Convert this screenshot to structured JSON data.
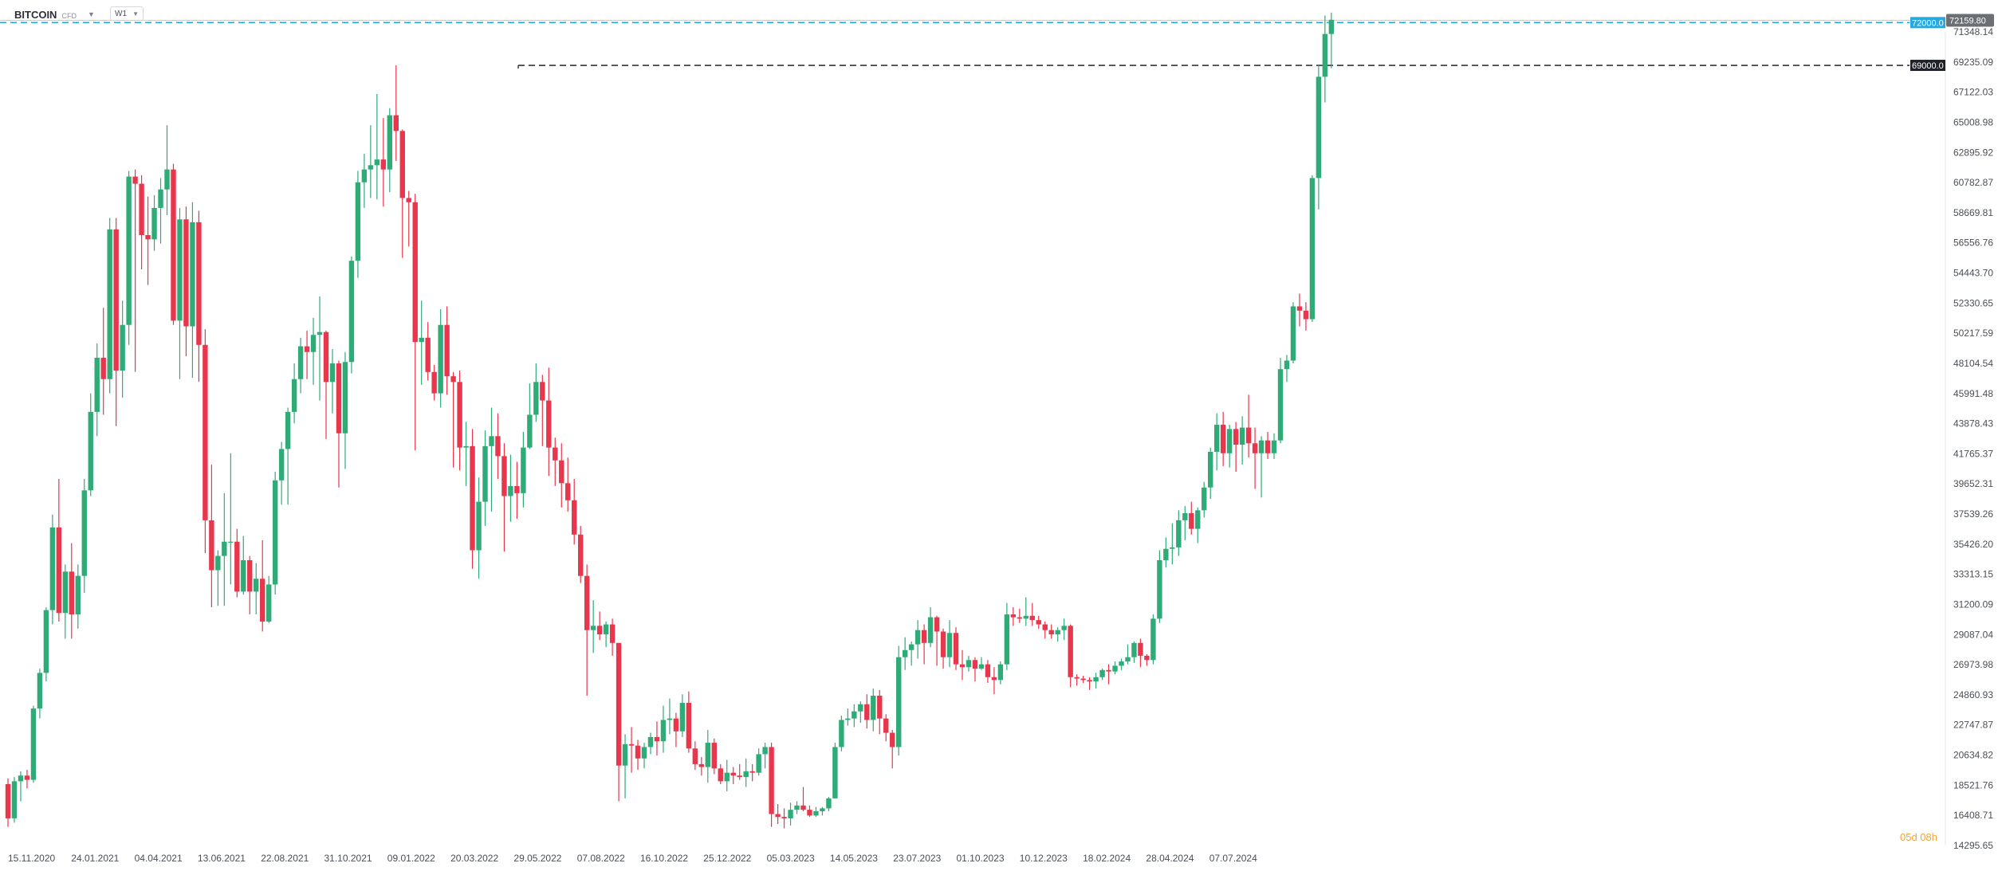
{
  "toolbar": {
    "symbol": "BITCOIN",
    "symbol_type": "CFD",
    "timeframe": "W1",
    "caret_icon": "caret-down-icon"
  },
  "colors": {
    "up": "#2fab78",
    "down": "#e8364c",
    "level_blue": "#29a7e1",
    "level_dark": "#333333",
    "price_badge": "#6b6f75"
  },
  "chart_data": {
    "type": "candlestick",
    "title": "",
    "xlabel": "",
    "ylabel": "",
    "ylim": [
      14295.65,
      73280.0
    ],
    "y_ticks": [
      "71348.14",
      "69235.09",
      "67122.03",
      "65008.98",
      "62895.92",
      "60782.87",
      "58669.81",
      "56556.76",
      "54443.70",
      "52330.65",
      "50217.59",
      "48104.54",
      "45991.48",
      "43878.43",
      "41765.37",
      "39652.31",
      "37539.26",
      "35426.20",
      "33313.15",
      "31200.09",
      "29087.04",
      "26973.98",
      "24860.93",
      "22747.87",
      "20634.82",
      "18521.76",
      "16408.71",
      "14295.65"
    ],
    "x_ticks": [
      "15.11.2020",
      "24.01.2021",
      "04.04.2021",
      "13.06.2021",
      "22.08.2021",
      "31.10.2021",
      "09.01.2022",
      "20.03.2022",
      "29.05.2022",
      "07.08.2022",
      "16.10.2022",
      "25.12.2022",
      "05.03.2023",
      "14.05.2023",
      "23.07.2023",
      "01.10.2023",
      "10.12.2023",
      "18.02.2024",
      "28.04.2024",
      "07.07.2024"
    ],
    "levels": [
      {
        "value": 72000.0,
        "label": "72000.0",
        "style": "blue-dashed"
      },
      {
        "value": 69000.0,
        "label": "69000.0",
        "style": "dark-dashed"
      }
    ],
    "last_price": 72159.8,
    "last_price_label": "72159.80",
    "countdown": "05d 08h",
    "candles": [
      [
        18600,
        16200,
        19000,
        15600
      ],
      [
        16200,
        18800,
        19100,
        15900
      ],
      [
        18800,
        19200,
        19500,
        17400
      ],
      [
        19200,
        18900,
        19600,
        18300
      ],
      [
        18900,
        23900,
        24100,
        18700
      ],
      [
        23900,
        26400,
        26700,
        23200
      ],
      [
        26400,
        30800,
        31000,
        25800
      ],
      [
        30800,
        36600,
        37500,
        29800
      ],
      [
        36600,
        30600,
        40000,
        30000
      ],
      [
        30600,
        33500,
        34000,
        28800
      ],
      [
        33500,
        30500,
        35500,
        28800
      ],
      [
        30500,
        33200,
        34000,
        29500
      ],
      [
        33200,
        39200,
        40000,
        32000
      ],
      [
        39200,
        44700,
        46000,
        38800
      ],
      [
        44700,
        48500,
        49500,
        43000
      ],
      [
        48500,
        47000,
        52000,
        44500
      ],
      [
        47000,
        57500,
        58300,
        46000
      ],
      [
        57500,
        47600,
        58300,
        43700
      ],
      [
        47600,
        50800,
        52500,
        45700
      ],
      [
        50800,
        61200,
        61600,
        49400
      ],
      [
        61200,
        60700,
        61700,
        47500
      ],
      [
        60700,
        57100,
        61300,
        54700
      ],
      [
        57100,
        56800,
        59800,
        53600
      ],
      [
        56800,
        59000,
        59900,
        56000
      ],
      [
        59000,
        60300,
        61100,
        56500
      ],
      [
        60300,
        61700,
        64800,
        58500
      ],
      [
        61700,
        51100,
        62100,
        50800
      ],
      [
        51100,
        58200,
        59000,
        47000
      ],
      [
        58200,
        50700,
        59100,
        48600
      ],
      [
        50700,
        58000,
        59400,
        47100
      ],
      [
        58000,
        49400,
        58800,
        46800
      ],
      [
        49400,
        37100,
        50500,
        34800
      ],
      [
        37100,
        33600,
        41000,
        31000
      ],
      [
        33600,
        34600,
        35000,
        31100
      ],
      [
        34600,
        35600,
        39000,
        31100
      ],
      [
        35600,
        35600,
        41800,
        32600
      ],
      [
        35600,
        32100,
        36500,
        31700
      ],
      [
        32100,
        34300,
        36000,
        31900
      ],
      [
        34300,
        32100,
        34600,
        30500
      ],
      [
        32100,
        33000,
        34100,
        30500
      ],
      [
        33000,
        30000,
        35700,
        29300
      ],
      [
        30000,
        32600,
        33200,
        29900
      ],
      [
        32600,
        39900,
        40500,
        31900
      ],
      [
        39900,
        42100,
        42600,
        38200
      ],
      [
        42100,
        44700,
        45000,
        38200
      ],
      [
        44700,
        47000,
        48100,
        43900
      ],
      [
        47000,
        49300,
        49900,
        46000
      ],
      [
        49300,
        48900,
        50400,
        47000
      ],
      [
        48900,
        50100,
        51300,
        46600
      ],
      [
        50100,
        50300,
        52800,
        45500
      ],
      [
        50300,
        46800,
        50400,
        42800
      ],
      [
        46800,
        48100,
        49100,
        44600
      ],
      [
        48100,
        43200,
        48300,
        39400
      ],
      [
        43200,
        48200,
        48900,
        40700
      ],
      [
        48200,
        55300,
        55600,
        47400
      ],
      [
        55300,
        60800,
        61600,
        54100
      ],
      [
        60800,
        61700,
        62800,
        59000
      ],
      [
        61700,
        62000,
        64800,
        59700
      ],
      [
        62000,
        62400,
        67000,
        59600
      ],
      [
        62400,
        61700,
        65300,
        59100
      ],
      [
        61700,
        65500,
        66000,
        60100
      ],
      [
        65500,
        64400,
        69000,
        62300
      ],
      [
        64400,
        59700,
        64500,
        55500
      ],
      [
        59700,
        59400,
        60200,
        56300
      ],
      [
        59400,
        49600,
        60000,
        42000
      ],
      [
        49600,
        49900,
        52500,
        46600
      ],
      [
        49900,
        47500,
        51000,
        46900
      ],
      [
        47500,
        46000,
        48000,
        45500
      ],
      [
        46000,
        50800,
        51900,
        45000
      ],
      [
        50800,
        47200,
        52100,
        45900
      ],
      [
        47200,
        46800,
        47500,
        40800
      ],
      [
        46800,
        42200,
        47600,
        40600
      ],
      [
        42200,
        42300,
        44000,
        39500
      ],
      [
        42300,
        35000,
        43500,
        33700
      ],
      [
        35000,
        38400,
        40100,
        33000
      ],
      [
        38400,
        42300,
        43400,
        36700
      ],
      [
        42300,
        43000,
        45000,
        37700
      ],
      [
        43000,
        41600,
        44600,
        40000
      ],
      [
        41600,
        38800,
        42500,
        34900
      ],
      [
        38800,
        39500,
        41700,
        37000
      ],
      [
        39500,
        39000,
        41200,
        37200
      ],
      [
        39000,
        42200,
        43300,
        38000
      ],
      [
        42200,
        44500,
        46700,
        42100
      ],
      [
        44500,
        46800,
        48100,
        44000
      ],
      [
        46800,
        45500,
        47300,
        42300
      ],
      [
        45500,
        42200,
        47800,
        40200
      ],
      [
        42200,
        41300,
        42900,
        39500
      ],
      [
        41300,
        39700,
        42500,
        38000
      ],
      [
        39700,
        38500,
        41500,
        37700
      ],
      [
        38500,
        36100,
        40000,
        35400
      ],
      [
        36100,
        33200,
        36700,
        32700
      ],
      [
        33200,
        29400,
        34000,
        24800
      ],
      [
        29400,
        29700,
        31500,
        27800
      ],
      [
        29700,
        29100,
        30700,
        28700
      ],
      [
        29100,
        29800,
        30000,
        28200
      ],
      [
        29800,
        28500,
        30200,
        27600
      ],
      [
        28500,
        19900,
        28500,
        17400
      ],
      [
        19900,
        21400,
        22100,
        17600
      ],
      [
        21400,
        21300,
        22600,
        19400
      ],
      [
        21300,
        20400,
        21700,
        19600
      ],
      [
        20400,
        21200,
        21500,
        19700
      ],
      [
        21200,
        21900,
        22200,
        20700
      ],
      [
        21900,
        21600,
        23000,
        20600
      ],
      [
        21600,
        23100,
        24100,
        20800
      ],
      [
        23100,
        23200,
        24600,
        22100
      ],
      [
        23200,
        22300,
        23600,
        21200
      ],
      [
        22300,
        24300,
        24900,
        21900
      ],
      [
        24300,
        21100,
        25100,
        20800
      ],
      [
        21100,
        20000,
        21600,
        19600
      ],
      [
        20000,
        19800,
        20500,
        19200
      ],
      [
        19800,
        21500,
        22400,
        18700
      ],
      [
        21500,
        19700,
        21800,
        19300
      ],
      [
        19700,
        18800,
        20000,
        18600
      ],
      [
        18800,
        19400,
        20300,
        18100
      ],
      [
        19400,
        19200,
        19800,
        18600
      ],
      [
        19200,
        19100,
        20000,
        18900
      ],
      [
        19100,
        19500,
        20400,
        18400
      ],
      [
        19500,
        19400,
        20000,
        18800
      ],
      [
        19400,
        20700,
        21100,
        19200
      ],
      [
        20700,
        21200,
        21500,
        19700
      ],
      [
        21200,
        16500,
        21500,
        15600
      ],
      [
        16500,
        16300,
        17200,
        15800
      ],
      [
        16300,
        16200,
        16900,
        15500
      ],
      [
        16200,
        16800,
        17300,
        15700
      ],
      [
        16800,
        17100,
        17400,
        16500
      ],
      [
        17100,
        16800,
        18400,
        16700
      ],
      [
        16800,
        16400,
        17100,
        16300
      ],
      [
        16400,
        16700,
        17000,
        16300
      ],
      [
        16700,
        16900,
        17000,
        16400
      ],
      [
        16900,
        17600,
        17700,
        16700
      ],
      [
        17600,
        21200,
        21500,
        17600
      ],
      [
        21200,
        23100,
        23400,
        20900
      ],
      [
        23100,
        23200,
        23900,
        22700
      ],
      [
        23200,
        23700,
        24200,
        22600
      ],
      [
        23700,
        24200,
        24400,
        22900
      ],
      [
        24200,
        23100,
        24900,
        22500
      ],
      [
        23100,
        24800,
        25300,
        22300
      ],
      [
        24800,
        23200,
        25200,
        22100
      ],
      [
        23200,
        22200,
        23500,
        21600
      ],
      [
        22200,
        21200,
        22400,
        19700
      ],
      [
        21200,
        27500,
        28300,
        20600
      ],
      [
        27500,
        28000,
        28900,
        26600
      ],
      [
        28000,
        28400,
        28600,
        26900
      ],
      [
        28400,
        29400,
        30100,
        27400
      ],
      [
        29400,
        28500,
        29800,
        27000
      ],
      [
        28500,
        30300,
        31000,
        28200
      ],
      [
        30300,
        29300,
        30400,
        26900
      ],
      [
        29300,
        27500,
        29500,
        26700
      ],
      [
        27500,
        29200,
        30100,
        26800
      ],
      [
        29200,
        27000,
        29600,
        26600
      ],
      [
        27000,
        26800,
        28000,
        25900
      ],
      [
        26800,
        27300,
        27600,
        26500
      ],
      [
        27300,
        26700,
        27500,
        25800
      ],
      [
        26700,
        27000,
        27500,
        26600
      ],
      [
        27000,
        26100,
        27300,
        25700
      ],
      [
        26100,
        25900,
        26800,
        24900
      ],
      [
        25900,
        27000,
        27200,
        25600
      ],
      [
        27000,
        30500,
        31300,
        26600
      ],
      [
        30500,
        30300,
        31000,
        29700
      ],
      [
        30300,
        30200,
        30900,
        29900
      ],
      [
        30200,
        30400,
        31700,
        29700
      ],
      [
        30400,
        30100,
        31300,
        29700
      ],
      [
        30100,
        29800,
        30400,
        29500
      ],
      [
        29800,
        29400,
        30000,
        28800
      ],
      [
        29400,
        29100,
        29800,
        28800
      ],
      [
        29100,
        29400,
        29600,
        28600
      ],
      [
        29400,
        29700,
        30200,
        28700
      ],
      [
        29700,
        26100,
        29800,
        25400
      ],
      [
        26100,
        26000,
        26300,
        25500
      ],
      [
        26000,
        25900,
        26200,
        25700
      ],
      [
        25900,
        25800,
        26100,
        25200
      ],
      [
        25800,
        26100,
        26400,
        25300
      ],
      [
        26100,
        26600,
        26700,
        25900
      ],
      [
        26600,
        26500,
        27000,
        25600
      ],
      [
        26500,
        26900,
        27200,
        26300
      ],
      [
        26900,
        27200,
        27400,
        26600
      ],
      [
        27200,
        27500,
        28400,
        27000
      ],
      [
        27500,
        28500,
        28600,
        27100
      ],
      [
        28500,
        27600,
        28800,
        26800
      ],
      [
        27600,
        27300,
        27700,
        26900
      ],
      [
        27300,
        30200,
        30500,
        27000
      ],
      [
        30200,
        34300,
        35000,
        29900
      ],
      [
        34300,
        35100,
        35900,
        33800
      ],
      [
        35100,
        35200,
        36900,
        34000
      ],
      [
        35200,
        37100,
        37800,
        34600
      ],
      [
        37100,
        37600,
        38100,
        35700
      ],
      [
        37600,
        36500,
        38400,
        36100
      ],
      [
        36500,
        37800,
        38000,
        35500
      ],
      [
        37800,
        39400,
        39800,
        37300
      ],
      [
        39400,
        41900,
        42200,
        38600
      ],
      [
        41900,
        43800,
        44600,
        40600
      ],
      [
        43800,
        41800,
        44700,
        40900
      ],
      [
        41800,
        43500,
        43800,
        40800
      ],
      [
        43500,
        42400,
        44000,
        40500
      ],
      [
        42400,
        43600,
        44400,
        41000
      ],
      [
        43600,
        42500,
        45900,
        41500
      ],
      [
        42500,
        41800,
        43600,
        39300
      ],
      [
        41800,
        42700,
        43000,
        38700
      ],
      [
        42700,
        41800,
        43300,
        41400
      ],
      [
        41800,
        42700,
        43200,
        41400
      ],
      [
        42700,
        47700,
        48500,
        42500
      ],
      [
        47700,
        48300,
        48700,
        46800
      ],
      [
        48300,
        52100,
        52400,
        48100
      ],
      [
        52100,
        51800,
        53000,
        50700
      ],
      [
        51800,
        51200,
        52400,
        50400
      ],
      [
        51200,
        61100,
        61300,
        51000
      ],
      [
        61100,
        68200,
        69000,
        58900
      ],
      [
        68200,
        71200,
        72500,
        66400
      ],
      [
        71200,
        72200,
        72700,
        68800
      ]
    ]
  }
}
